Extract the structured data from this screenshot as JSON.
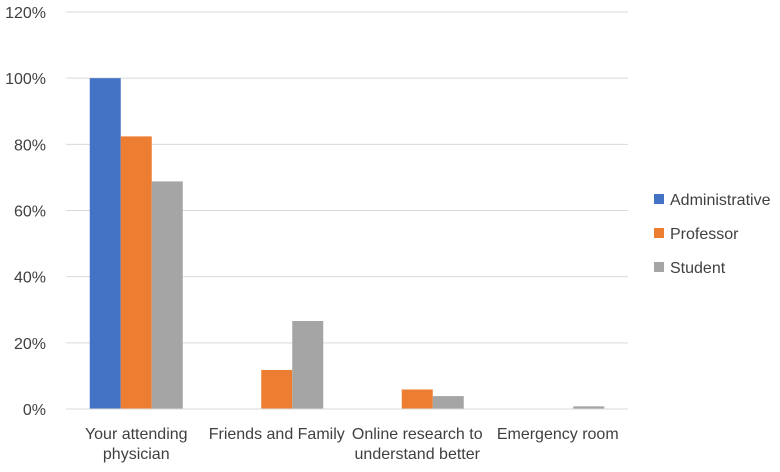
{
  "chart_data": {
    "type": "bar",
    "title": "",
    "xlabel": "",
    "ylabel": "",
    "categories": [
      [
        "Your attending",
        "physician"
      ],
      [
        "Friends and Family"
      ],
      [
        "Online research to",
        "understand better"
      ],
      [
        "Emergency room"
      ]
    ],
    "series": [
      {
        "name": "Administrative",
        "color": "#4472C4",
        "values": [
          100,
          0,
          0,
          0
        ]
      },
      {
        "name": "Professor",
        "color": "#ED7D31",
        "values": [
          82.4,
          11.8,
          5.9,
          0
        ]
      },
      {
        "name": "Student",
        "color": "#A5A5A5",
        "values": [
          68.8,
          26.6,
          3.9,
          0.8
        ]
      }
    ],
    "ylim": [
      0,
      120
    ],
    "yticks": [
      0,
      20,
      40,
      60,
      80,
      100,
      120
    ],
    "ytick_format": "percent",
    "grid": true,
    "legend": "right"
  }
}
